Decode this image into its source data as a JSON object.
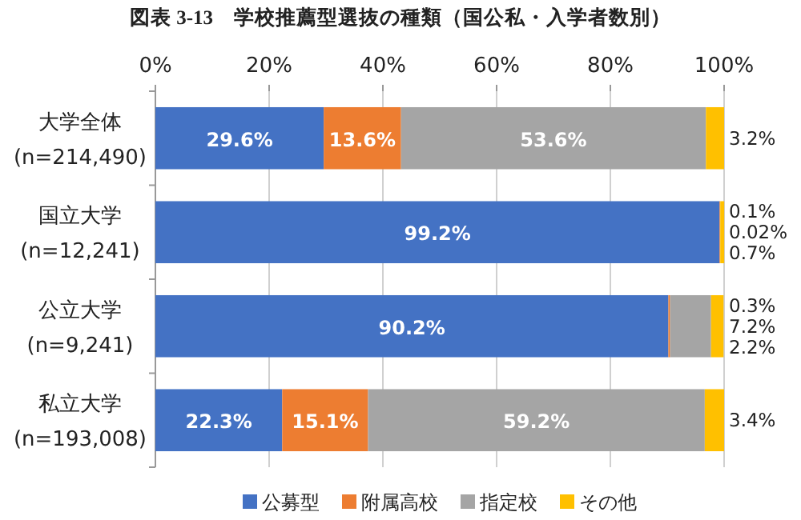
{
  "chart_data": {
    "type": "bar",
    "orientation": "horizontal",
    "stacked": true,
    "title": "図表 3-13　学校推薦型選抜の種類（国公私・入学者数別）",
    "categories": [
      "大学全体\n(n=214,490)",
      "国立大学\n(n=12,241)",
      "公立大学\n(n=9,241)",
      "私立大学\n(n=193,008)"
    ],
    "series": [
      {
        "name": "公募型",
        "color": "#4472c4",
        "values": [
          29.6,
          99.2,
          90.2,
          22.3
        ],
        "value_labels": [
          "29.6%",
          "99.2%",
          "90.2%",
          "22.3%"
        ]
      },
      {
        "name": "附属高校",
        "color": "#ed7d31",
        "values": [
          13.6,
          0.1,
          0.3,
          15.1
        ],
        "value_labels": [
          "13.6%",
          "0.1%",
          "0.3%",
          "15.1%"
        ]
      },
      {
        "name": "指定校",
        "color": "#a5a5a5",
        "values": [
          53.6,
          0.02,
          7.2,
          59.2
        ],
        "value_labels": [
          "53.6%",
          "0.02%",
          "7.2%",
          "59.2%"
        ]
      },
      {
        "name": "その他",
        "color": "#ffc000",
        "values": [
          3.2,
          0.7,
          2.2,
          3.4
        ],
        "value_labels": [
          "3.2%",
          "0.7%",
          "2.2%",
          "3.4%"
        ]
      }
    ],
    "xlim": [
      0,
      100
    ],
    "xticks": [
      {
        "value": 0,
        "label": "0%"
      },
      {
        "value": 20,
        "label": "20%"
      },
      {
        "value": 40,
        "label": "40%"
      },
      {
        "value": 60,
        "label": "60%"
      },
      {
        "value": 80,
        "label": "80%"
      },
      {
        "value": 100,
        "label": "100%"
      }
    ],
    "grid": "x",
    "legend": "bottom"
  }
}
